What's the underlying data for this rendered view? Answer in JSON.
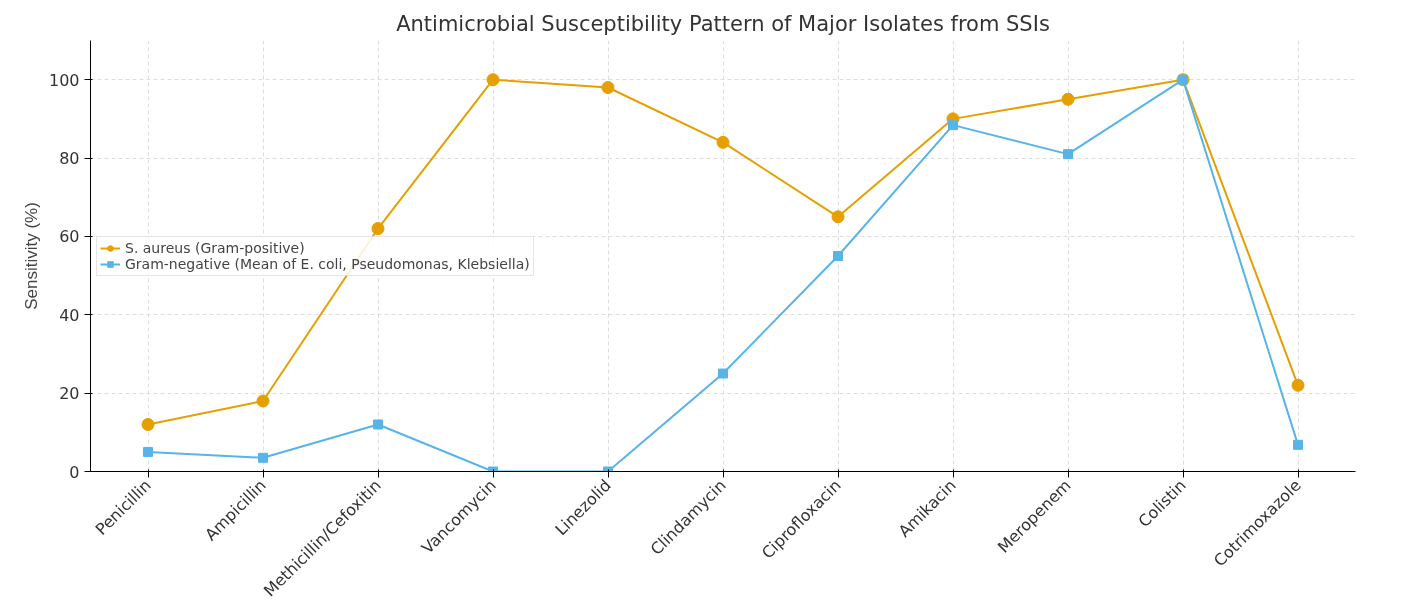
{
  "chart_data": {
    "type": "line",
    "title": "Antimicrobial Susceptibility Pattern of Major Isolates from SSIs",
    "ylabel": "Sensitivity (%)",
    "categories": [
      "Penicillin",
      "Ampicillin",
      "Methicillin/Cefoxitin",
      "Vancomycin",
      "Linezolid",
      "Clindamycin",
      "Ciprofloxacin",
      "Amikacin",
      "Meropenem",
      "Colistin",
      "Cotrimoxazole"
    ],
    "series": [
      {
        "name": "S. aureus (Gram-positive)",
        "color": "#e69f00",
        "marker": "circle",
        "values": [
          12,
          18,
          62,
          100,
          98,
          84,
          65,
          90,
          95,
          100,
          22
        ]
      },
      {
        "name": "Gram-negative (Mean of E. coli, Pseudomonas, Klebsiella)",
        "color": "#56b4e9",
        "marker": "square",
        "values": [
          5,
          3.5,
          12,
          0,
          0,
          25,
          55,
          88.4,
          81,
          100,
          6.8
        ]
      }
    ],
    "ylim": [
      0,
      110
    ],
    "yticks": [
      0,
      20,
      40,
      60,
      80,
      100
    ],
    "grid": true,
    "legend": "center left",
    "line_style": "solid"
  }
}
